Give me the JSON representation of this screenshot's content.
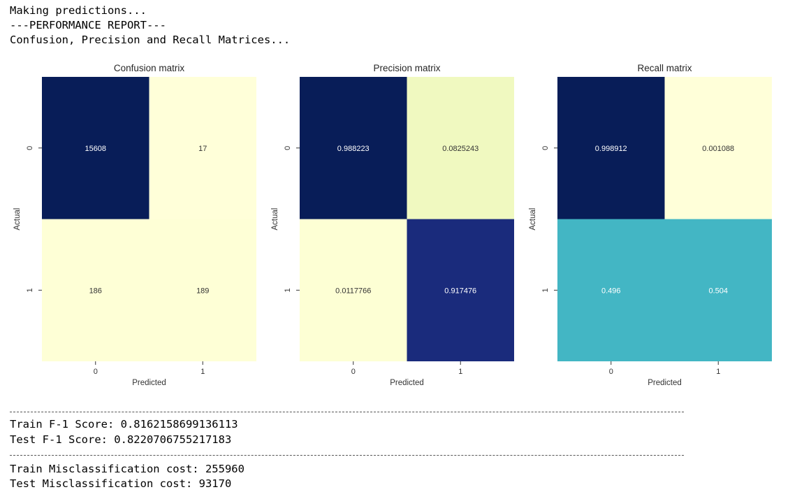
{
  "header_lines": [
    "Making predictions...",
    "---PERFORMANCE REPORT---",
    "Confusion, Precision and Recall Matrices..."
  ],
  "chart_data": [
    {
      "type": "heatmap",
      "title": "Confusion matrix",
      "xlabel": "Predicted",
      "ylabel": "Actual",
      "x_ticks": [
        "0",
        "1"
      ],
      "y_ticks": [
        "0",
        "1"
      ],
      "cells": [
        [
          "15608",
          "17"
        ],
        [
          "186",
          "189"
        ]
      ],
      "colors": [
        [
          "#081d58",
          "#ffffd9"
        ],
        [
          "#feffd6",
          "#feffd6"
        ]
      ],
      "text_colors": [
        [
          "#ffffff",
          "#333333"
        ],
        [
          "#333333",
          "#333333"
        ]
      ]
    },
    {
      "type": "heatmap",
      "title": "Precision matrix",
      "xlabel": "Predicted",
      "ylabel": "Actual",
      "x_ticks": [
        "0",
        "1"
      ],
      "y_ticks": [
        "0",
        "1"
      ],
      "cells": [
        [
          "0.988223",
          "0.0825243"
        ],
        [
          "0.0117766",
          "0.917476"
        ]
      ],
      "colors": [
        [
          "#081d58",
          "#f0f9c0"
        ],
        [
          "#fdffd4",
          "#1a2b7c"
        ]
      ],
      "text_colors": [
        [
          "#ffffff",
          "#333333"
        ],
        [
          "#333333",
          "#ffffff"
        ]
      ]
    },
    {
      "type": "heatmap",
      "title": "Recall matrix",
      "xlabel": "Predicted",
      "ylabel": "Actual",
      "x_ticks": [
        "0",
        "1"
      ],
      "y_ticks": [
        "0",
        "1"
      ],
      "cells": [
        [
          "0.998912",
          "0.001088"
        ],
        [
          "0.496",
          "0.504"
        ]
      ],
      "colors": [
        [
          "#081d58",
          "#ffffd9"
        ],
        [
          "#43b6c4",
          "#43b6c4"
        ]
      ],
      "text_colors": [
        [
          "#ffffff",
          "#333333"
        ],
        [
          "#ffffff",
          "#ffffff"
        ]
      ]
    }
  ],
  "separator_1": "-----------------------------------------------------------------------------------------------",
  "scores": [
    "Train F-1 Score: 0.8162158699136113",
    "Test F-1 Score: 0.8220706755217183"
  ],
  "separator_2": "-----------------------------------------------------------------------------------------------",
  "costs": [
    "Train Misclassification cost: 255960",
    "Test Misclassification cost: 93170"
  ]
}
